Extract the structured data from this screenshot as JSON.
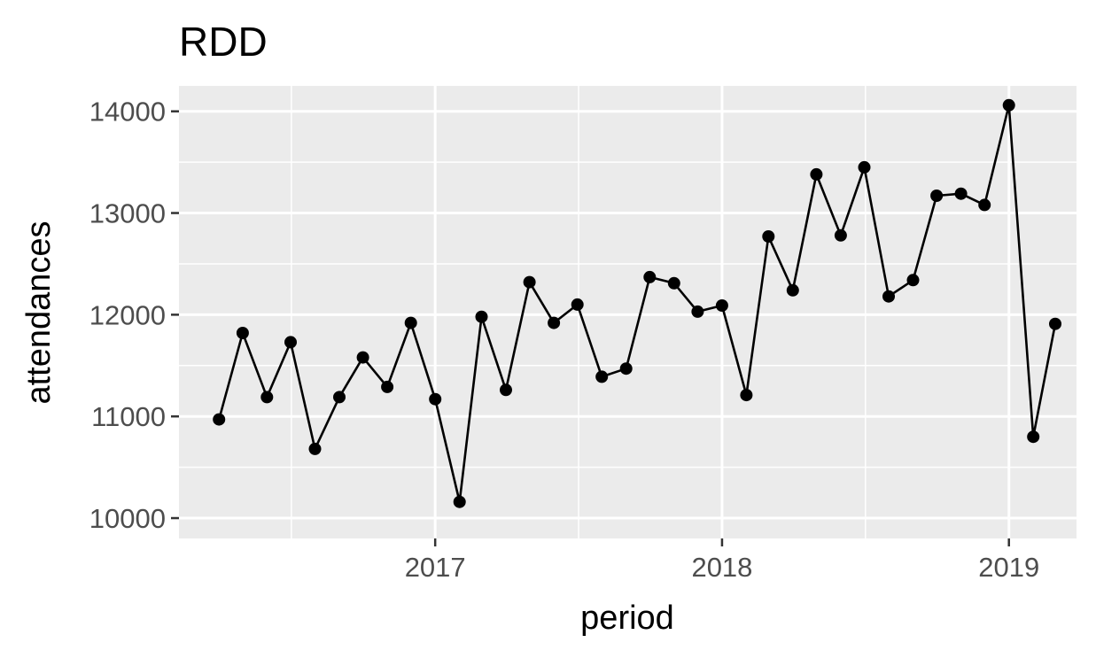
{
  "chart_data": {
    "type": "line",
    "title": "RDD",
    "xlabel": "period",
    "ylabel": "attendances",
    "x_ticks": [
      "2017",
      "2018",
      "2019"
    ],
    "y_ticks": [
      "10000",
      "11000",
      "12000",
      "13000",
      "14000"
    ],
    "ylim": [
      9800,
      14250
    ],
    "xlim": [
      "2016-02-10",
      "2019-03-28"
    ],
    "grid": true,
    "legend": "none",
    "colors": {
      "panel": "#ebebeb",
      "grid": "#ffffff",
      "series": "#000000"
    },
    "series": [
      {
        "x": [
          "2016-04-01",
          "2016-05-01",
          "2016-06-01",
          "2016-07-01",
          "2016-08-01",
          "2016-09-01",
          "2016-10-01",
          "2016-11-01",
          "2016-12-01",
          "2017-01-01",
          "2017-02-01",
          "2017-03-01",
          "2017-04-01",
          "2017-05-01",
          "2017-06-01",
          "2017-07-01",
          "2017-08-01",
          "2017-09-01",
          "2017-10-01",
          "2017-11-01",
          "2017-12-01",
          "2018-01-01",
          "2018-02-01",
          "2018-03-01",
          "2018-04-01",
          "2018-05-01",
          "2018-06-01",
          "2018-07-01",
          "2018-08-01",
          "2018-09-01",
          "2018-10-01",
          "2018-11-01",
          "2018-12-01",
          "2019-01-01",
          "2019-02-01",
          "2019-03-01"
        ],
        "y": [
          10970,
          11820,
          11190,
          11730,
          10680,
          11190,
          11580,
          11290,
          11920,
          11170,
          10160,
          11980,
          11260,
          12320,
          11920,
          12100,
          11390,
          11470,
          12370,
          12310,
          12030,
          12090,
          11210,
          12770,
          12240,
          13380,
          12780,
          13450,
          12180,
          12340,
          13170,
          13190,
          13080,
          14060,
          10800,
          11910
        ]
      }
    ]
  }
}
